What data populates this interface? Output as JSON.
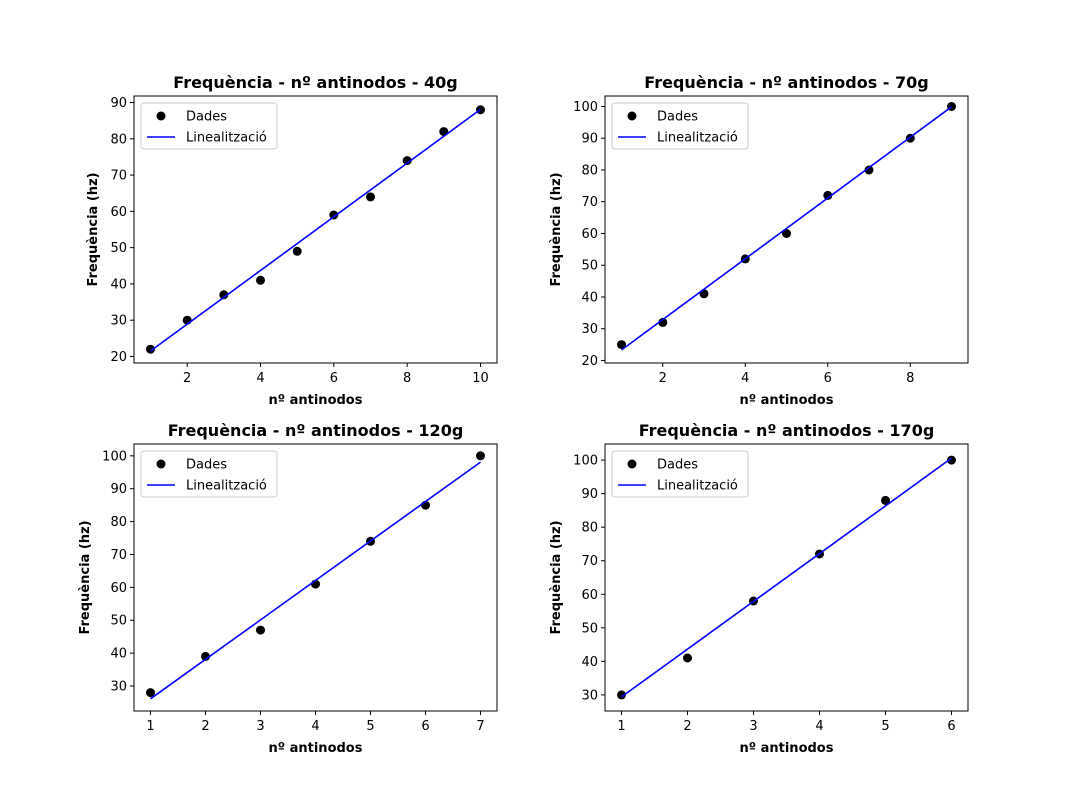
{
  "chart_data": [
    {
      "type": "scatter",
      "title": "Frequència - nº antinodos - 40g",
      "xlabel": "nº antinodos",
      "ylabel": "Frequència (hz)",
      "xlim": [
        0.55,
        10.45
      ],
      "ylim": [
        18.2,
        91.8
      ],
      "xticks": [
        2,
        4,
        6,
        8,
        10
      ],
      "yticks": [
        20,
        30,
        40,
        50,
        60,
        70,
        80,
        90
      ],
      "legend_position": "top-left",
      "series": [
        {
          "name": "Dades",
          "kind": "scatter",
          "color": "#000000",
          "x": [
            1,
            2,
            3,
            4,
            5,
            6,
            7,
            8,
            9,
            10
          ],
          "y": [
            22,
            30,
            37,
            41,
            49,
            59,
            64,
            74,
            82,
            88
          ]
        },
        {
          "name": "Linealització",
          "kind": "line",
          "color": "#0000ff",
          "x": [
            1,
            10
          ],
          "y": [
            21.5,
            88.1
          ]
        }
      ]
    },
    {
      "type": "scatter",
      "title": "Frequència - nº antinodos - 70g",
      "xlabel": "nº antinodos",
      "ylabel": "Frequència (hz)",
      "xlim": [
        0.6,
        9.4
      ],
      "ylim": [
        19.2,
        103.3
      ],
      "xticks": [
        2,
        4,
        6,
        8
      ],
      "yticks": [
        20,
        30,
        40,
        50,
        60,
        70,
        80,
        90,
        100
      ],
      "legend_position": "top-left",
      "series": [
        {
          "name": "Dades",
          "kind": "scatter",
          "color": "#000000",
          "x": [
            1,
            2,
            3,
            4,
            5,
            6,
            7,
            8,
            9
          ],
          "y": [
            25,
            32,
            41,
            52,
            60,
            72,
            80,
            90,
            100
          ]
        },
        {
          "name": "Linealització",
          "kind": "line",
          "color": "#0000ff",
          "x": [
            1,
            9
          ],
          "y": [
            23.3,
            99.9
          ]
        }
      ]
    },
    {
      "type": "scatter",
      "title": "Frequència - nº antinodos - 120g",
      "xlabel": "nº antinodos",
      "ylabel": "Frequència (hz)",
      "xlim": [
        0.7,
        7.3
      ],
      "ylim": [
        22.4,
        103.6
      ],
      "xticks": [
        1,
        2,
        3,
        4,
        5,
        6,
        7
      ],
      "yticks": [
        30,
        40,
        50,
        60,
        70,
        80,
        90,
        100
      ],
      "legend_position": "top-left",
      "series": [
        {
          "name": "Dades",
          "kind": "scatter",
          "color": "#000000",
          "x": [
            1,
            2,
            3,
            4,
            5,
            6,
            7
          ],
          "y": [
            28,
            39,
            47,
            61,
            74,
            85,
            100
          ]
        },
        {
          "name": "Linealització",
          "kind": "line",
          "color": "#0000ff",
          "x": [
            1,
            7
          ],
          "y": [
            26.1,
            98.1
          ]
        }
      ]
    },
    {
      "type": "scatter",
      "title": "Frequència - nº antinodos - 170g",
      "xlabel": "nº antinodos",
      "ylabel": "Frequència (hz)",
      "xlim": [
        0.75,
        6.25
      ],
      "ylim": [
        25.2,
        104.8
      ],
      "xticks": [
        1,
        2,
        3,
        4,
        5,
        6
      ],
      "yticks": [
        30,
        40,
        50,
        60,
        70,
        80,
        90,
        100
      ],
      "legend_position": "top-left",
      "series": [
        {
          "name": "Dades",
          "kind": "scatter",
          "color": "#000000",
          "x": [
            1,
            2,
            3,
            4,
            5,
            6
          ],
          "y": [
            30,
            41,
            58,
            72,
            88,
            100
          ]
        },
        {
          "name": "Linealització",
          "kind": "line",
          "color": "#0000ff",
          "x": [
            1,
            6
          ],
          "y": [
            29.4,
            100.6
          ]
        }
      ]
    }
  ]
}
